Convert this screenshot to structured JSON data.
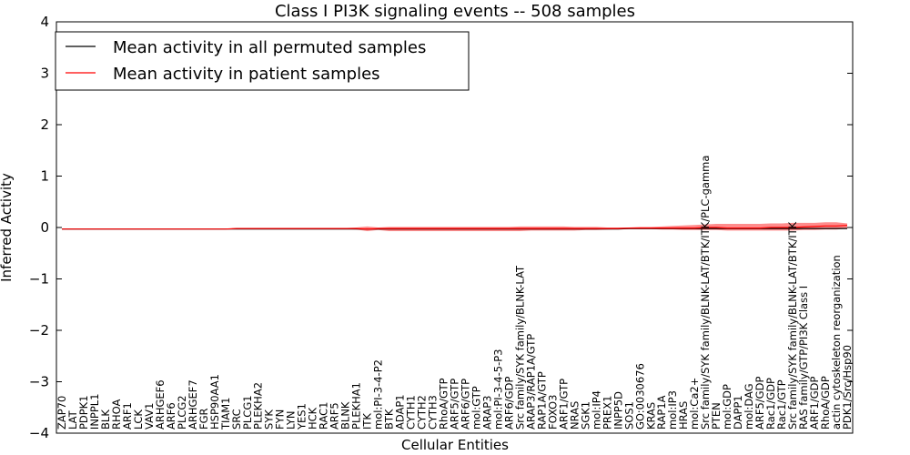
{
  "chart_data": {
    "type": "line",
    "title": "Class I PI3K signaling events -- 508 samples",
    "xlabel": "Cellular Entities",
    "ylabel": "Inferred Activity",
    "ylim": [
      -4,
      4
    ],
    "yticks": [
      "4",
      "3",
      "2",
      "1",
      "0",
      "−1",
      "−2",
      "−3",
      "−4"
    ],
    "grid": false,
    "legend_position": "top-left",
    "categories": [
      "ZAP70",
      "LAT",
      "PDPK1",
      "INPPL1",
      "BLK",
      "RHOA",
      "ARF1",
      "LCK",
      "VAV1",
      "ARHGEF6",
      "ARF6",
      "PLCG2",
      "ARHGEF7",
      "FGR",
      "HSP90AA1",
      "TIAM1",
      "SRC",
      "PLCG1",
      "PLEKHA2",
      "SYK",
      "FYN",
      "LYN",
      "YES1",
      "HCK",
      "RAC1",
      "ARF5",
      "BLNK",
      "PLEKHA1",
      "ITK",
      "mol:PI-3-4-P2",
      "BTK",
      "ADAP1",
      "CYTH1",
      "CYTH2",
      "CYTH3",
      "RhoA/GTP",
      "ARF5/GTP",
      "ARF6/GTP",
      "mol:GTP",
      "ARAP3",
      "mol:PI-3-4-5-P3",
      "ARF6/GDP",
      "Src family/SYK family/BLNK-LAT",
      "ARAP3/RAP1A/GTP",
      "RAP1A/GTP",
      "FOXO3",
      "ARF1/GTP",
      "NRAS",
      "SGK1",
      "mol:IP4",
      "PREX1",
      "INPP5D",
      "SOS1",
      "GO:0030676",
      "KRAS",
      "RAP1A",
      "mol:IP3",
      "HRAS",
      "mol:Ca2+",
      "Src family/SYK family/BLNK-LAT/BTK/ITK/PLC-gamma",
      "PTEN",
      "mol:GDP",
      "DAPP1",
      "mol:DAG",
      "ARF5/GDP",
      "Rac1/GDP",
      "Rac1/GTP",
      "Src family/SYK family/BLNK-LAT/BTK/ITK",
      "RAS family/GTP/PI3K Class I",
      "ARF1/GDP",
      "RhoA/GDP",
      "actin cytoskeleton reorganization",
      "PDK1/Src/Hsp90"
    ],
    "series": [
      {
        "name": "Mean activity in all permuted samples",
        "color": "#000000",
        "values": [
          -0.03,
          -0.03,
          -0.03,
          -0.03,
          -0.03,
          -0.03,
          -0.03,
          -0.03,
          -0.03,
          -0.03,
          -0.03,
          -0.03,
          -0.03,
          -0.03,
          -0.03,
          -0.03,
          -0.03,
          -0.03,
          -0.03,
          -0.03,
          -0.03,
          -0.03,
          -0.03,
          -0.03,
          -0.03,
          -0.03,
          -0.03,
          -0.03,
          -0.03,
          -0.03,
          -0.03,
          -0.03,
          -0.03,
          -0.03,
          -0.03,
          -0.03,
          -0.03,
          -0.03,
          -0.03,
          -0.03,
          -0.03,
          -0.03,
          -0.03,
          -0.03,
          -0.03,
          -0.03,
          -0.03,
          -0.03,
          -0.03,
          -0.03,
          -0.03,
          -0.03,
          -0.02,
          -0.02,
          -0.02,
          -0.02,
          -0.02,
          -0.02,
          -0.02,
          -0.02,
          -0.02,
          -0.02,
          -0.02,
          -0.02,
          -0.02,
          -0.02,
          -0.02,
          -0.02,
          -0.02,
          -0.02,
          -0.02,
          -0.02,
          -0.02
        ]
      },
      {
        "name": "Mean activity in patient samples",
        "color": "#ff0000",
        "values": [
          -0.03,
          -0.03,
          -0.03,
          -0.03,
          -0.03,
          -0.03,
          -0.03,
          -0.03,
          -0.03,
          -0.03,
          -0.03,
          -0.03,
          -0.03,
          -0.03,
          -0.03,
          -0.03,
          -0.02,
          -0.02,
          -0.02,
          -0.02,
          -0.02,
          -0.02,
          -0.02,
          -0.02,
          -0.02,
          -0.02,
          -0.02,
          -0.02,
          -0.03,
          -0.02,
          -0.02,
          -0.02,
          -0.02,
          -0.02,
          -0.02,
          -0.02,
          -0.02,
          -0.02,
          -0.02,
          -0.02,
          -0.02,
          -0.02,
          -0.02,
          -0.02,
          -0.02,
          -0.02,
          -0.02,
          -0.02,
          -0.02,
          -0.02,
          -0.02,
          -0.02,
          -0.01,
          -0.01,
          -0.01,
          -0.01,
          -0.01,
          -0.01,
          -0.01,
          0.0,
          0.0,
          -0.01,
          -0.01,
          -0.01,
          -0.01,
          0.0,
          0.0,
          0.0,
          0.01,
          0.02,
          0.03,
          0.03,
          0.04
        ]
      }
    ],
    "band": {
      "color": "#ff0000",
      "lower": [
        -0.03,
        -0.03,
        -0.03,
        -0.03,
        -0.03,
        -0.03,
        -0.03,
        -0.03,
        -0.03,
        -0.03,
        -0.03,
        -0.03,
        -0.03,
        -0.03,
        -0.03,
        -0.03,
        -0.03,
        -0.03,
        -0.03,
        -0.03,
        -0.03,
        -0.03,
        -0.03,
        -0.03,
        -0.03,
        -0.03,
        -0.03,
        -0.04,
        -0.07,
        -0.05,
        -0.07,
        -0.07,
        -0.07,
        -0.07,
        -0.07,
        -0.07,
        -0.07,
        -0.07,
        -0.07,
        -0.07,
        -0.07,
        -0.07,
        -0.07,
        -0.06,
        -0.06,
        -0.06,
        -0.06,
        -0.06,
        -0.05,
        -0.05,
        -0.04,
        -0.03,
        -0.03,
        -0.03,
        -0.03,
        -0.04,
        -0.04,
        -0.05,
        -0.05,
        -0.05,
        -0.05,
        -0.06,
        -0.06,
        -0.06,
        -0.06,
        -0.06,
        -0.06,
        -0.06,
        -0.05,
        -0.05,
        -0.04,
        -0.04,
        -0.02
      ],
      "upper": [
        -0.03,
        -0.03,
        -0.03,
        -0.03,
        -0.03,
        -0.03,
        -0.03,
        -0.03,
        -0.03,
        -0.03,
        -0.03,
        -0.03,
        -0.03,
        -0.03,
        -0.03,
        -0.03,
        -0.02,
        -0.01,
        -0.01,
        -0.01,
        -0.01,
        -0.01,
        -0.01,
        -0.01,
        -0.01,
        -0.01,
        -0.01,
        0.0,
        0.02,
        0.0,
        0.01,
        0.01,
        0.01,
        0.01,
        0.01,
        0.01,
        0.01,
        0.01,
        0.01,
        0.01,
        0.01,
        0.01,
        0.02,
        0.02,
        0.02,
        0.02,
        0.02,
        0.01,
        0.01,
        0.01,
        0.0,
        0.0,
        0.0,
        0.01,
        0.01,
        0.02,
        0.03,
        0.04,
        0.05,
        0.06,
        0.07,
        0.07,
        0.07,
        0.07,
        0.07,
        0.08,
        0.08,
        0.09,
        0.09,
        0.09,
        0.1,
        0.1,
        0.08
      ]
    }
  }
}
